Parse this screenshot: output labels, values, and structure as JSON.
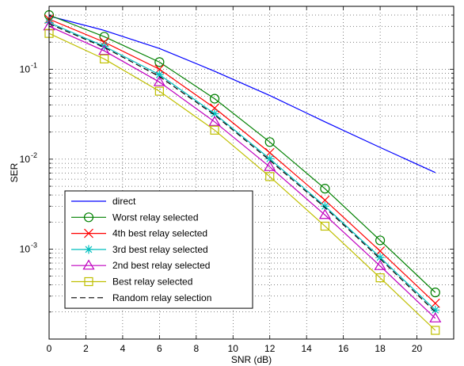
{
  "chart_data": {
    "type": "line",
    "xlabel": "SNR (dB)",
    "ylabel": "SER",
    "xlim": [
      0,
      22
    ],
    "ylim": [
      0.0001,
      0.5
    ],
    "yscale": "log",
    "grid": true,
    "legend_position": "bottom-left",
    "x_ticks": [
      "0",
      "2",
      "4",
      "6",
      "8",
      "10",
      "12",
      "14",
      "16",
      "18",
      "20"
    ],
    "x_tick_values": [
      0,
      2,
      4,
      6,
      8,
      10,
      12,
      14,
      16,
      18,
      20
    ],
    "y_ticks": [
      {
        "base": "10",
        "exp": "-1",
        "value": 0.1
      },
      {
        "base": "10",
        "exp": "-2",
        "value": 0.01
      },
      {
        "base": "10",
        "exp": "-3",
        "value": 0.001
      }
    ],
    "series": [
      {
        "name": "direct",
        "color": "#0000ff",
        "marker": "none",
        "dash": false,
        "x": [
          0,
          3,
          6,
          9,
          12,
          15,
          18,
          21
        ],
        "values": [
          0.39,
          0.27,
          0.17,
          0.095,
          0.051,
          0.026,
          0.0135,
          0.0071
        ]
      },
      {
        "name": "Worst relay selected",
        "color": "#008000",
        "marker": "circle",
        "dash": false,
        "x": [
          0,
          3,
          6,
          9,
          12,
          15,
          18,
          21
        ],
        "values": [
          0.4,
          0.23,
          0.12,
          0.047,
          0.0155,
          0.0047,
          0.00125,
          0.00033
        ]
      },
      {
        "name": "4th best relay selected",
        "color": "#ff0000",
        "marker": "x",
        "dash": false,
        "x": [
          0,
          3,
          6,
          9,
          12,
          15,
          18,
          21
        ],
        "values": [
          0.36,
          0.2,
          0.1,
          0.037,
          0.0118,
          0.0035,
          0.00095,
          0.00025
        ]
      },
      {
        "name": "3rd best relay selected",
        "color": "#00bfbf",
        "marker": "star",
        "dash": false,
        "x": [
          0,
          3,
          6,
          9,
          12,
          15,
          18,
          21
        ],
        "values": [
          0.33,
          0.18,
          0.087,
          0.032,
          0.0101,
          0.003,
          0.00081,
          0.00021
        ]
      },
      {
        "name": "2nd best relay selected",
        "color": "#bf00bf",
        "marker": "triangle",
        "dash": false,
        "x": [
          0,
          3,
          6,
          9,
          12,
          15,
          18,
          21
        ],
        "values": [
          0.3,
          0.16,
          0.072,
          0.026,
          0.0082,
          0.0024,
          0.00065,
          0.00017
        ]
      },
      {
        "name": "Best relay selected",
        "color": "#bfbf00",
        "marker": "square",
        "dash": false,
        "x": [
          0,
          3,
          6,
          9,
          12,
          15,
          18,
          21
        ],
        "values": [
          0.25,
          0.13,
          0.057,
          0.021,
          0.0064,
          0.0018,
          0.00048,
          0.000125
        ]
      },
      {
        "name": "Random relay selection",
        "color": "#000000",
        "marker": "none",
        "dash": true,
        "x": [
          0,
          3,
          6,
          9,
          12,
          15,
          18,
          21
        ],
        "values": [
          0.32,
          0.175,
          0.083,
          0.031,
          0.0097,
          0.0029,
          0.00078,
          0.0002
        ]
      }
    ]
  }
}
